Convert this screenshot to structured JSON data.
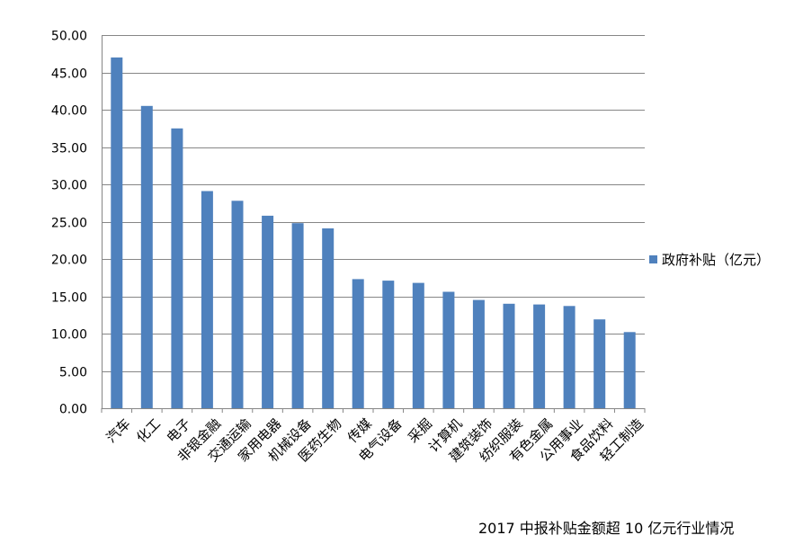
{
  "chart_data": {
    "type": "bar",
    "categories": [
      "汽车",
      "化工",
      "电子",
      "非银金融",
      "交通运输",
      "家用电器",
      "机械设备",
      "医药生物",
      "传媒",
      "电气设备",
      "采掘",
      "计算机",
      "建筑装饰",
      "纺织服装",
      "有色金属",
      "公用事业",
      "食品饮料",
      "轻工制造"
    ],
    "series": [
      {
        "name": "政府补贴（亿元）",
        "values": [
          47.0,
          40.5,
          37.5,
          29.1,
          27.8,
          25.8,
          24.8,
          24.1,
          17.3,
          17.1,
          16.8,
          15.6,
          14.5,
          14.0,
          13.9,
          13.7,
          11.9,
          10.2
        ]
      }
    ],
    "ylim": [
      0,
      50
    ],
    "yticks": [
      "0.00",
      "5.00",
      "10.00",
      "15.00",
      "20.00",
      "25.00",
      "30.00",
      "35.00",
      "40.00",
      "45.00",
      "50.00"
    ],
    "title": "",
    "xlabel": "",
    "ylabel": "",
    "grid": true,
    "legend_position": "right",
    "bar_color": "#4f81bd",
    "grid_color": "#868686"
  },
  "caption": "2017 中报补贴金额超 10 亿元行业情况"
}
